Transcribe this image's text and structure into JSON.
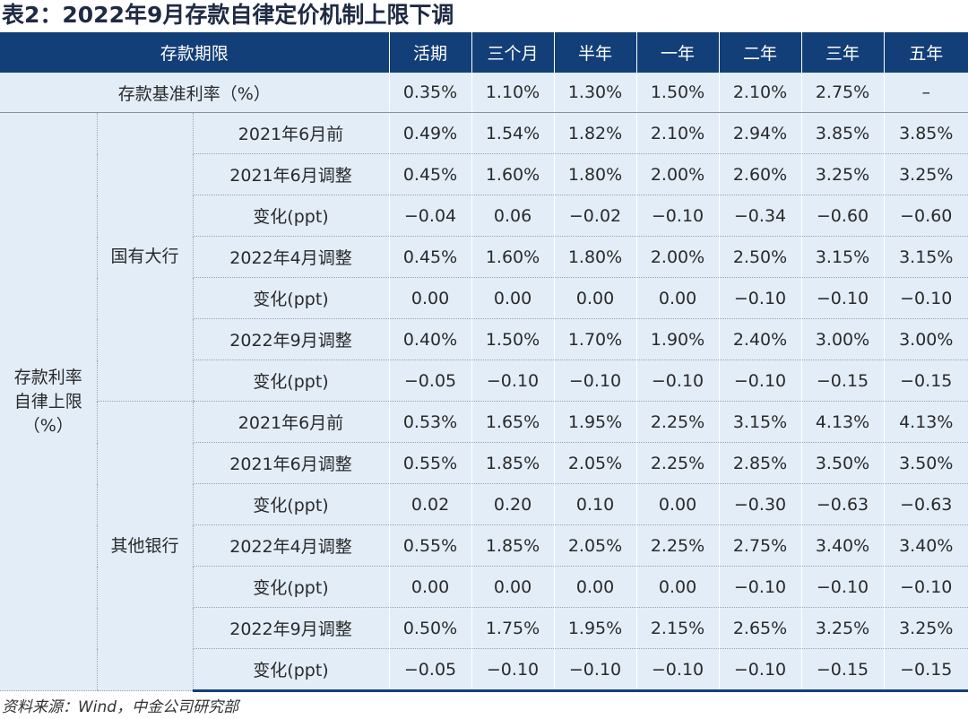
{
  "title": "表2：2022年9月存款自律定价机制上限下调",
  "header": {
    "term_label": "存款期限",
    "terms": [
      "活期",
      "三个月",
      "半年",
      "一年",
      "二年",
      "三年",
      "五年"
    ]
  },
  "base_row": {
    "label": "存款基准利率（%）",
    "values": [
      "0.35%",
      "1.10%",
      "1.30%",
      "1.50%",
      "2.10%",
      "2.75%",
      "–"
    ]
  },
  "cap_label_lines": [
    "存款利率",
    "自律上限",
    "（%）"
  ],
  "groups": [
    {
      "name": "国有大行",
      "rows": [
        {
          "label": "2021年6月前",
          "values": [
            "0.49%",
            "1.54%",
            "1.82%",
            "2.10%",
            "2.94%",
            "3.85%",
            "3.85%"
          ]
        },
        {
          "label": "2021年6月调整",
          "values": [
            "0.45%",
            "1.60%",
            "1.80%",
            "2.00%",
            "2.60%",
            "3.25%",
            "3.25%"
          ]
        },
        {
          "label": "变化(ppt)",
          "values": [
            "−0.04",
            "0.06",
            "−0.02",
            "−0.10",
            "−0.34",
            "−0.60",
            "−0.60"
          ]
        },
        {
          "label": "2022年4月调整",
          "values": [
            "0.45%",
            "1.60%",
            "1.80%",
            "2.00%",
            "2.50%",
            "3.15%",
            "3.15%"
          ]
        },
        {
          "label": "变化(ppt)",
          "values": [
            "0.00",
            "0.00",
            "0.00",
            "0.00",
            "−0.10",
            "−0.10",
            "−0.10"
          ]
        },
        {
          "label": "2022年9月调整",
          "values": [
            "0.40%",
            "1.50%",
            "1.70%",
            "1.90%",
            "2.40%",
            "3.00%",
            "3.00%"
          ]
        },
        {
          "label": "变化(ppt)",
          "values": [
            "−0.05",
            "−0.10",
            "−0.10",
            "−0.10",
            "−0.10",
            "−0.15",
            "−0.15"
          ]
        }
      ]
    },
    {
      "name": "其他银行",
      "rows": [
        {
          "label": "2021年6月前",
          "values": [
            "0.53%",
            "1.65%",
            "1.95%",
            "2.25%",
            "3.15%",
            "4.13%",
            "4.13%"
          ]
        },
        {
          "label": "2021年6月调整",
          "values": [
            "0.55%",
            "1.85%",
            "2.05%",
            "2.25%",
            "2.85%",
            "3.50%",
            "3.50%"
          ]
        },
        {
          "label": "变化(ppt)",
          "values": [
            "0.02",
            "0.20",
            "0.10",
            "0.00",
            "−0.30",
            "−0.63",
            "−0.63"
          ]
        },
        {
          "label": "2022年4月调整",
          "values": [
            "0.55%",
            "1.85%",
            "2.05%",
            "2.25%",
            "2.75%",
            "3.40%",
            "3.40%"
          ]
        },
        {
          "label": "变化(ppt)",
          "values": [
            "0.00",
            "0.00",
            "0.00",
            "0.00",
            "−0.10",
            "−0.10",
            "−0.10"
          ]
        },
        {
          "label": "2022年9月调整",
          "values": [
            "0.50%",
            "1.75%",
            "1.95%",
            "2.15%",
            "2.65%",
            "3.25%",
            "3.25%"
          ]
        },
        {
          "label": "变化(ppt)",
          "values": [
            "−0.05",
            "−0.10",
            "−0.10",
            "−0.10",
            "−0.10",
            "−0.15",
            "−0.15"
          ]
        }
      ]
    }
  ],
  "source": "资料来源：Wind，中金公司研究部",
  "colors": {
    "header_bg": "#133f78",
    "cell_bg": "#e2edf8",
    "title_text": "#1f2a44"
  }
}
